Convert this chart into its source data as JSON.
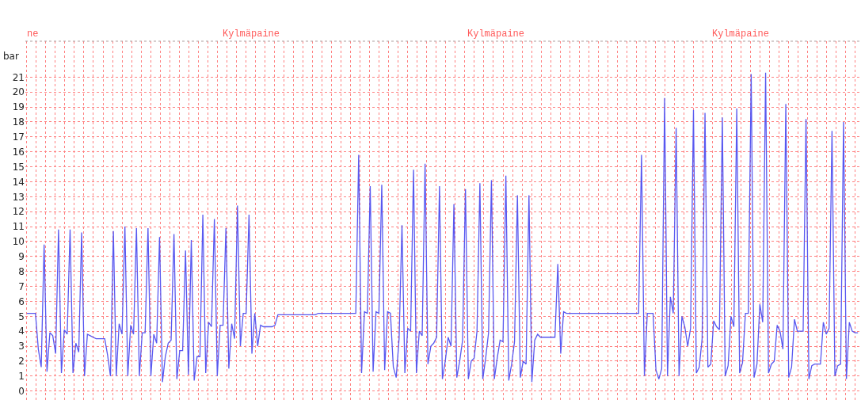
{
  "chart_data": {
    "type": "line",
    "ylabel": "bar",
    "annotations": [
      "ne",
      "Kylmäpaine",
      "Kylmäpaine",
      "Kylmäpaine"
    ],
    "categories": [
      null,
      null,
      null,
      null,
      null,
      null,
      null,
      null,
      null,
      null,
      null,
      null,
      null,
      null,
      null,
      null,
      null,
      null,
      null,
      null,
      null,
      null,
      null,
      null,
      null,
      null,
      null,
      null,
      null,
      null,
      null,
      null,
      null,
      null,
      null,
      null,
      null,
      null,
      null,
      null,
      null,
      null,
      null,
      null,
      null,
      null,
      null,
      null,
      null,
      null,
      null,
      null,
      null,
      null,
      null,
      null,
      null,
      null,
      null,
      null,
      null,
      null,
      null,
      null,
      null,
      null,
      null,
      null,
      null,
      null,
      null,
      null,
      null,
      null,
      null,
      null,
      null,
      null,
      null,
      null,
      null,
      null,
      null,
      null,
      null,
      null,
      null,
      null,
      null,
      null,
      null,
      null,
      null,
      null,
      null,
      null,
      null,
      null,
      null,
      null,
      null,
      null,
      null,
      null,
      null,
      null,
      null,
      null,
      null,
      null,
      null,
      null,
      null,
      null,
      null,
      null,
      null,
      null,
      null,
      null,
      null,
      null,
      null,
      null,
      null,
      null,
      null,
      null,
      null,
      null,
      null,
      null,
      null,
      null,
      null,
      null,
      null,
      null,
      null,
      null,
      null,
      null,
      null,
      null,
      null,
      null,
      null,
      null,
      null,
      null,
      null,
      null,
      null,
      null,
      null,
      null,
      null,
      null,
      null,
      null,
      null,
      null,
      null,
      null,
      null,
      null,
      null,
      null,
      null,
      null,
      null,
      null,
      null,
      null,
      null,
      null,
      null,
      null,
      null,
      null,
      null,
      null,
      null,
      null,
      null,
      null,
      null,
      null,
      null,
      null,
      null,
      null,
      null,
      null,
      null,
      null,
      null,
      null,
      null,
      null,
      null,
      null,
      null,
      null,
      null,
      null,
      null,
      null,
      null,
      null,
      null,
      null,
      null,
      null,
      null,
      null,
      null,
      null,
      null,
      null,
      null,
      null,
      null,
      null,
      null,
      null,
      null,
      null,
      null,
      null,
      null,
      null,
      null,
      null,
      null,
      null,
      null,
      null,
      null,
      null,
      null,
      null,
      null,
      null,
      null,
      null,
      null,
      null,
      null,
      null,
      null,
      null,
      null,
      null,
      null,
      null,
      null,
      null,
      null,
      null,
      null,
      null,
      null,
      null,
      null,
      null,
      null,
      null,
      null,
      null,
      null,
      null,
      null,
      null,
      null,
      null,
      null,
      null,
      null,
      null,
      null,
      null,
      null,
      null,
      null,
      null,
      null,
      null,
      null
    ],
    "series": [
      {
        "color": "#5858f0",
        "values": [
          5.2,
          5.2,
          5.2,
          5.2,
          2.8,
          1.6,
          9.8,
          1.3,
          3.9,
          3.7,
          2.5,
          10.8,
          1.2,
          4.1,
          3.8,
          10.8,
          1.2,
          3.2,
          2.6,
          10.6,
          1.0,
          3.8,
          3.7,
          3.6,
          3.5,
          3.5,
          3.5,
          3.5,
          2.4,
          1.0,
          10.7,
          1.0,
          4.5,
          3.8,
          11,
          1.0,
          4.4,
          3.8,
          10.9,
          1.0,
          3.9,
          3.9,
          10.9,
          1.0,
          3.8,
          3.2,
          10.3,
          0.6,
          2.3,
          3.2,
          3.4,
          10.5,
          0.8,
          2.7,
          2.7,
          9.4,
          1.1,
          10.1,
          0.7,
          2.3,
          2.3,
          11.8,
          1.2,
          4.6,
          4.3,
          11.5,
          1.0,
          4.4,
          4.4,
          10.9,
          1.5,
          4.5,
          3.5,
          12.4,
          3.0,
          5.2,
          5.2,
          11.8,
          2.5,
          5.2,
          3.0,
          4.4,
          4.3,
          4.3,
          4.3,
          4.3,
          4.4,
          5.1,
          5.1,
          5.1,
          5.1,
          5.1,
          5.1,
          5.1,
          5.1,
          5.1,
          5.1,
          5.1,
          5.1,
          5.1,
          5.1,
          5.2,
          5.2,
          5.2,
          5.2,
          5.2,
          5.2,
          5.2,
          5.2,
          5.2,
          5.2,
          5.2,
          5.2,
          5.2,
          5.2,
          15.8,
          1.2,
          5.3,
          5.2,
          13.7,
          1.3,
          5.3,
          5.2,
          13.8,
          1.4,
          5.3,
          5.2,
          1.6,
          0.9,
          3.5,
          11.1,
          1.2,
          4.2,
          4.0,
          14.8,
          1.2,
          4.0,
          3.7,
          15.2,
          1.8,
          3.0,
          3.2,
          3.6,
          13.7,
          0.8,
          2.0,
          3.6,
          3.0,
          12.5,
          0.9,
          2.0,
          3.4,
          13.5,
          0.8,
          2.0,
          2.2,
          4.0,
          13.9,
          0.8,
          2.2,
          3.9,
          14.1,
          0.8,
          2.2,
          3.4,
          3.3,
          14.4,
          0.7,
          1.8,
          3.3,
          13.1,
          0.9,
          2.0,
          1.8,
          13.1,
          0.6,
          3.4,
          3.8,
          3.6,
          3.6,
          3.6,
          3.6,
          3.6,
          3.6,
          8.5,
          2.5,
          5.3,
          5.2,
          5.2,
          5.2,
          5.2,
          5.2,
          5.2,
          5.2,
          5.2,
          5.2,
          5.2,
          5.2,
          5.2,
          5.2,
          5.2,
          5.2,
          5.2,
          5.2,
          5.2,
          5.2,
          5.2,
          5.2,
          5.2,
          5.2,
          5.2,
          5.2,
          5.2,
          15.8,
          1.0,
          5.2,
          5.2,
          5.2,
          1.4,
          0.8,
          1.5,
          19.6,
          1.0,
          6.3,
          5.2,
          17.6,
          1.0,
          5.0,
          4.3,
          3.0,
          4.2,
          18.8,
          1.2,
          1.6,
          3.5,
          18.6,
          1.6,
          1.8,
          4.7,
          4.3,
          4.1,
          18.3,
          1.0,
          1.7,
          5.0,
          4.3,
          18.9,
          1.2,
          1.9,
          5.2,
          5.2,
          21.2,
          0.9,
          1.8,
          5.8,
          4.6,
          21.3,
          1.2,
          1.8,
          2.0,
          4.4,
          4.0,
          2.8,
          19.2,
          0.9,
          1.6,
          4.8,
          4.0,
          4.0,
          4.0,
          18.2,
          0.8,
          1.7,
          1.8,
          1.8,
          1.8,
          4.6,
          3.8,
          4.2,
          17.4,
          1.0,
          1.7,
          1.8,
          18.0,
          0.8,
          4.6,
          4.0,
          3.9,
          3.9
        ]
      }
    ],
    "ylim": [
      -0.6,
      23.4
    ],
    "yticks": [
      0,
      1,
      2,
      3,
      4,
      5,
      6,
      7,
      8,
      9,
      10,
      11,
      12,
      13,
      14,
      15,
      16,
      17,
      18,
      19,
      20,
      21
    ],
    "grid": true,
    "tick_labels": "y",
    "marker": "none",
    "line_style": "solid"
  }
}
